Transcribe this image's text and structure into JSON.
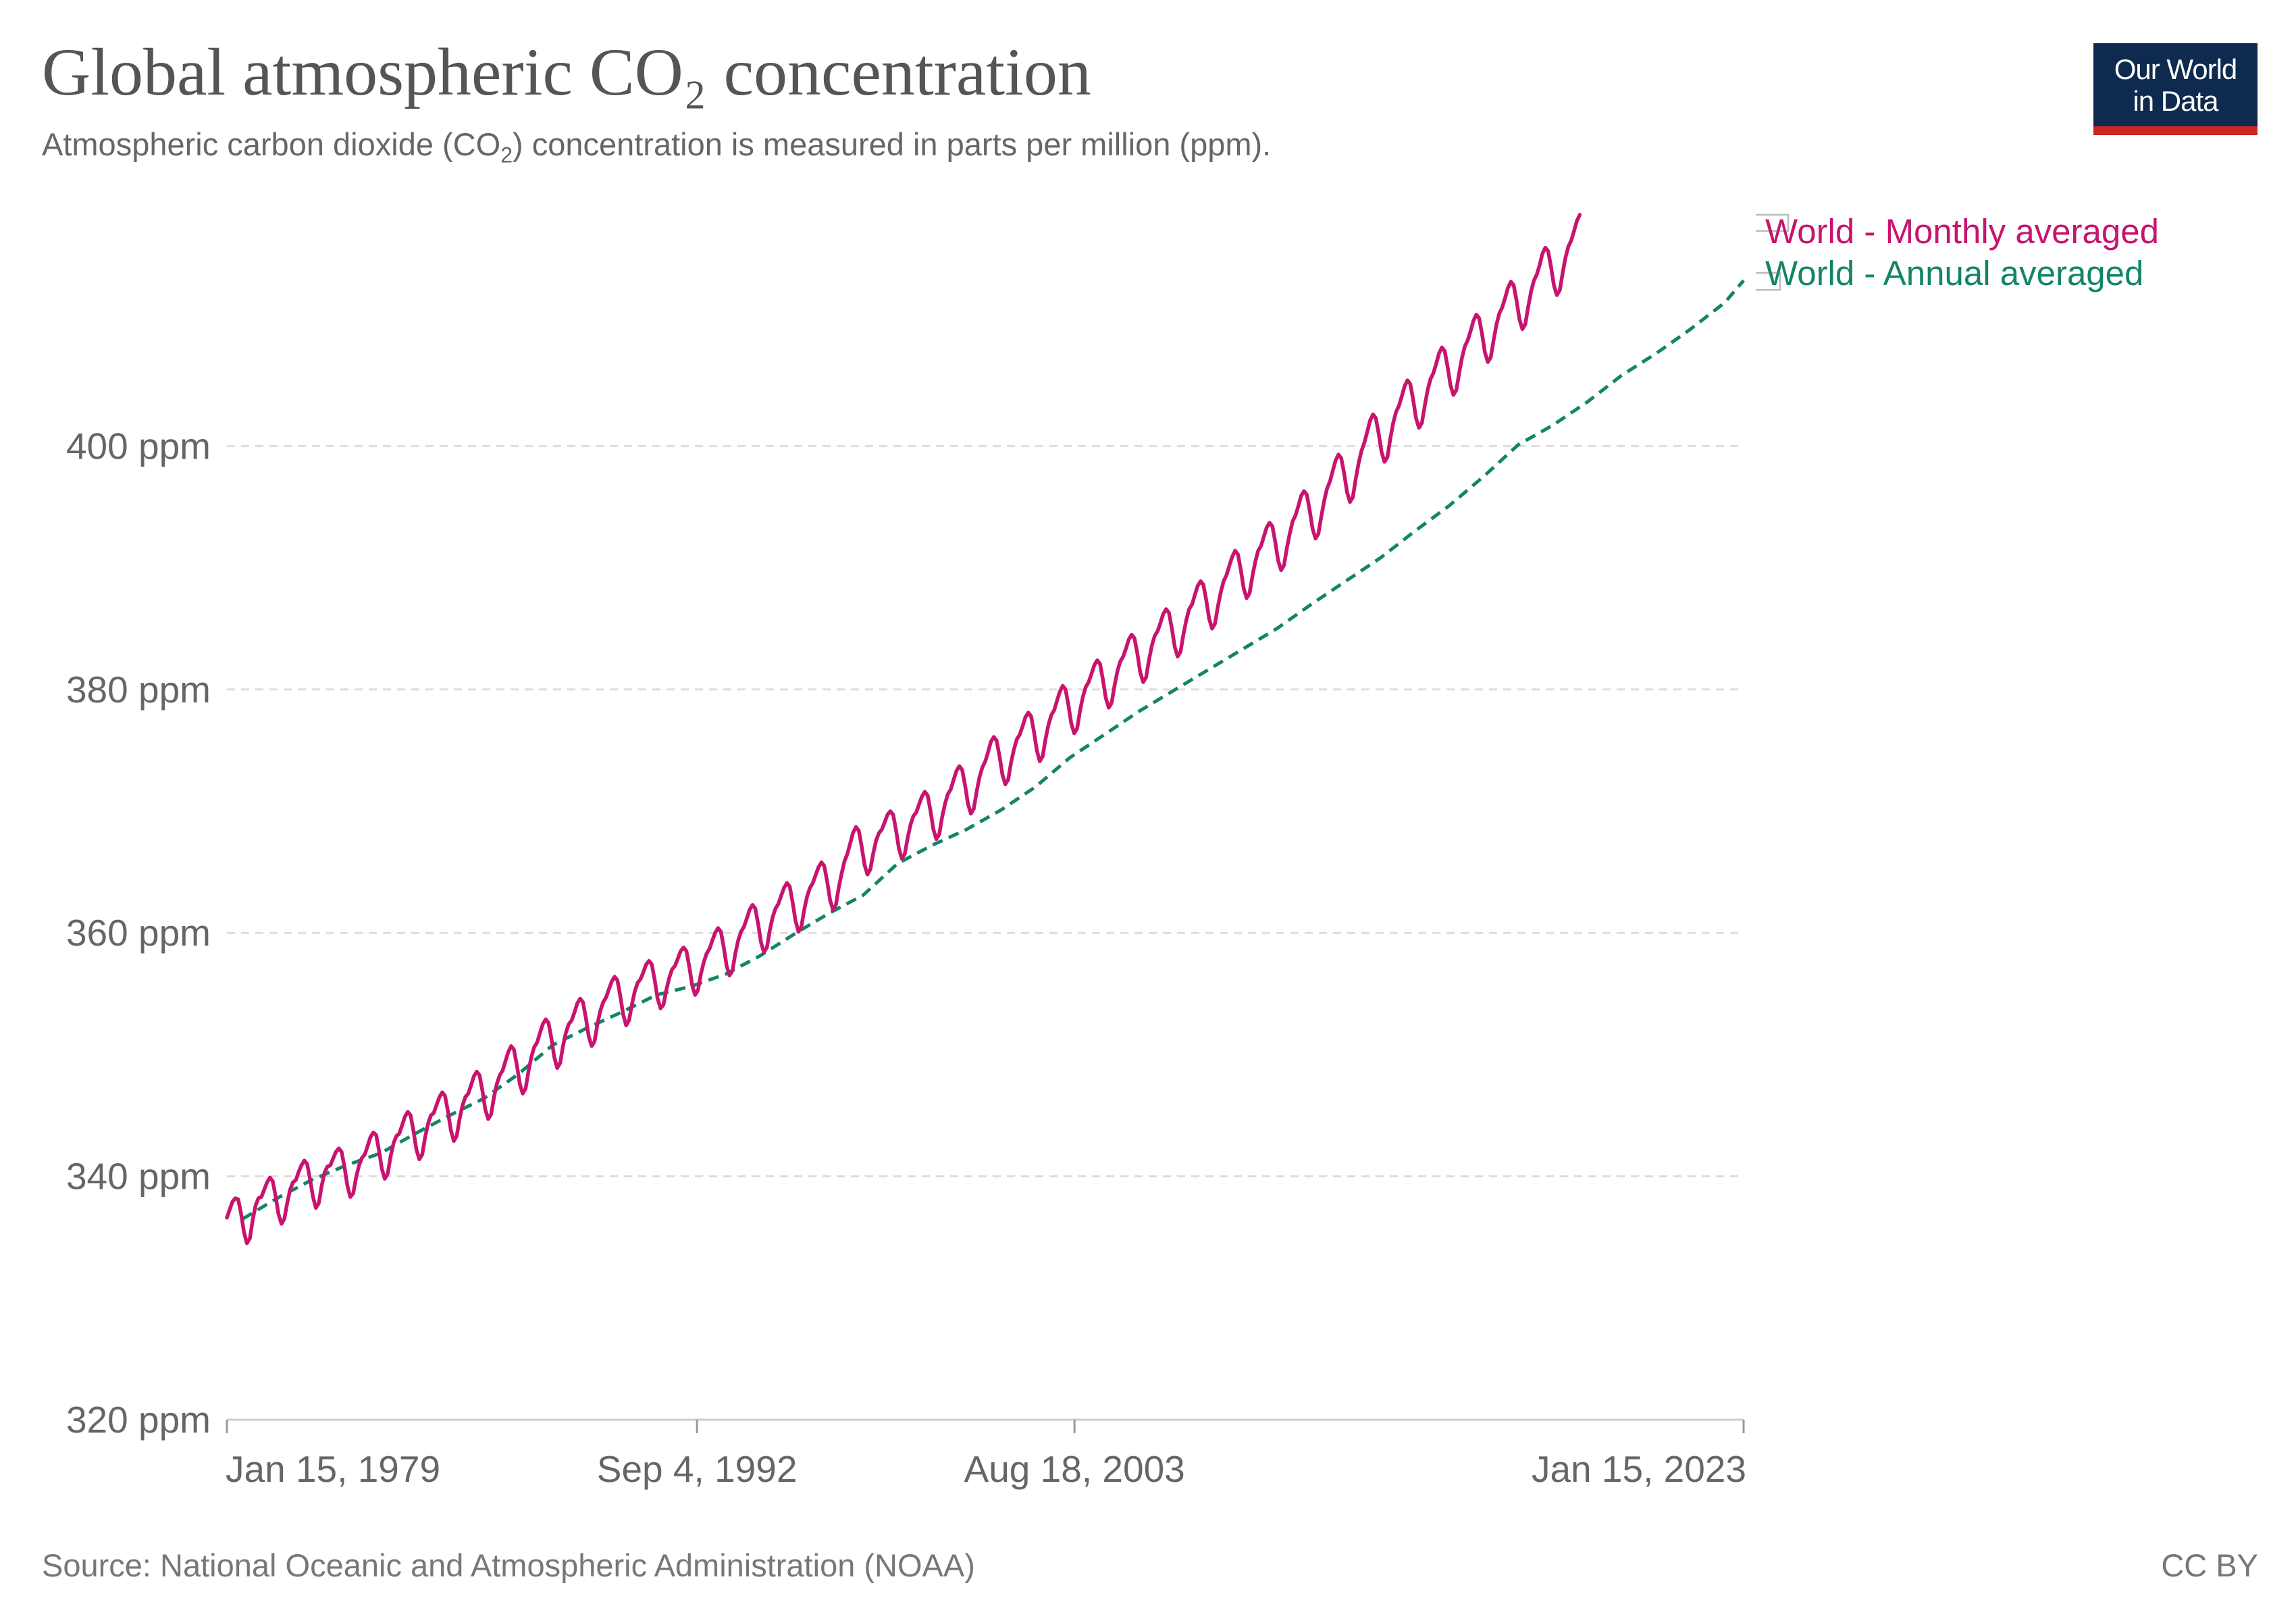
{
  "header": {
    "title": "Global atmospheric CO₂ concentration",
    "subtitle": "Atmospheric carbon dioxide (CO₂) concentration is measured in parts per million (ppm).",
    "logo_line1": "Our World",
    "logo_line2": "in Data"
  },
  "footer": {
    "source": "Source: National Oceanic and Atmospheric Administration (NOAA)",
    "license": "CC BY"
  },
  "colors": {
    "monthly": "#c8146e",
    "annual": "#138567",
    "grid": "#dddddd",
    "logo_bg": "#0f2a4f",
    "logo_accent": "#cd2424"
  },
  "chart_data": {
    "type": "line",
    "title": "Global atmospheric CO₂ concentration",
    "subtitle": "Atmospheric carbon dioxide (CO₂) concentration is measured in parts per million (ppm).",
    "xlabel": "",
    "ylabel": "",
    "xlim": [
      "1979-01-15",
      "2023-01-15"
    ],
    "ylim": [
      320,
      420
    ],
    "y_ticks": [
      320,
      340,
      360,
      380,
      400
    ],
    "y_tick_labels": [
      "320 ppm",
      "340 ppm",
      "360 ppm",
      "380 ppm",
      "400 ppm"
    ],
    "x_ticks": [
      "1979-01-15",
      "1992-09-04",
      "2003-08-18",
      "2023-01-15"
    ],
    "x_tick_labels": [
      "Jan 15, 1979",
      "Sep 4, 1992",
      "Aug 18, 2003",
      "Jan 15, 2023"
    ],
    "grid": "horizontal dashed",
    "legend_placement": "right",
    "series": [
      {
        "name": "World - Monthly averaged",
        "style": "solid",
        "frequency": "monthly",
        "start": "1979-01",
        "values": [
          336.6,
          337.3,
          337.9,
          338.2,
          338.1,
          336.9,
          335.4,
          334.5,
          334.9,
          336.4,
          337.6,
          338.2,
          338.3,
          338.9,
          339.5,
          339.9,
          339.6,
          338.3,
          336.9,
          336.1,
          336.5,
          337.8,
          338.9,
          339.5,
          339.7,
          340.4,
          340.9,
          341.3,
          341.0,
          339.7,
          338.3,
          337.4,
          337.8,
          339.2,
          340.3,
          340.8,
          340.9,
          341.5,
          342.0,
          342.3,
          342.0,
          340.7,
          339.2,
          338.3,
          338.6,
          339.9,
          340.9,
          341.5,
          341.8,
          342.5,
          343.2,
          343.6,
          343.4,
          342.1,
          340.6,
          339.8,
          340.2,
          341.6,
          342.7,
          343.3,
          343.5,
          344.2,
          344.9,
          345.3,
          345.0,
          343.7,
          342.2,
          341.4,
          341.8,
          343.2,
          344.3,
          345.0,
          345.2,
          345.9,
          346.5,
          346.9,
          346.6,
          345.3,
          343.8,
          342.9,
          343.3,
          344.7,
          345.8,
          346.5,
          346.8,
          347.5,
          348.2,
          348.6,
          348.3,
          347.0,
          345.5,
          344.7,
          345.1,
          346.5,
          347.6,
          348.3,
          348.7,
          349.5,
          350.2,
          350.7,
          350.4,
          349.1,
          347.6,
          346.8,
          347.2,
          348.6,
          349.8,
          350.6,
          351.0,
          351.8,
          352.5,
          352.9,
          352.6,
          351.3,
          349.8,
          348.9,
          349.3,
          350.7,
          351.8,
          352.5,
          352.8,
          353.5,
          354.2,
          354.6,
          354.3,
          353.0,
          351.5,
          350.7,
          351.1,
          352.5,
          353.6,
          354.3,
          354.7,
          355.4,
          356.0,
          356.4,
          356.1,
          354.8,
          353.3,
          352.4,
          352.8,
          354.1,
          355.2,
          355.9,
          356.2,
          356.8,
          357.4,
          357.7,
          357.4,
          356.1,
          354.6,
          353.8,
          354.1,
          355.3,
          356.3,
          357.0,
          357.3,
          357.9,
          358.5,
          358.8,
          358.5,
          357.2,
          355.7,
          354.9,
          355.3,
          356.6,
          357.6,
          358.3,
          358.7,
          359.4,
          360.0,
          360.4,
          360.1,
          358.8,
          357.3,
          356.5,
          356.9,
          358.3,
          359.4,
          360.1,
          360.5,
          361.2,
          361.9,
          362.3,
          362.0,
          360.7,
          359.2,
          358.4,
          358.8,
          360.2,
          361.3,
          362.0,
          362.4,
          363.1,
          363.7,
          364.1,
          363.8,
          362.5,
          361.0,
          360.1,
          360.5,
          361.9,
          363.0,
          363.7,
          364.1,
          364.8,
          365.4,
          365.8,
          365.5,
          364.2,
          362.7,
          361.9,
          362.3,
          363.7,
          364.9,
          365.9,
          366.5,
          367.4,
          368.2,
          368.7,
          368.4,
          367.1,
          365.6,
          364.8,
          365.2,
          366.5,
          367.6,
          368.2,
          368.5,
          369.1,
          369.7,
          370.0,
          369.7,
          368.4,
          366.9,
          366.1,
          366.5,
          367.8,
          368.9,
          369.6,
          369.9,
          370.6,
          371.2,
          371.6,
          371.3,
          370.0,
          368.5,
          367.7,
          368.1,
          369.5,
          370.6,
          371.4,
          371.8,
          372.6,
          373.3,
          373.7,
          373.4,
          372.1,
          370.6,
          369.8,
          370.2,
          371.6,
          372.8,
          373.6,
          374.1,
          374.9,
          375.7,
          376.1,
          375.8,
          374.5,
          373.0,
          372.2,
          372.6,
          374.0,
          375.1,
          375.9,
          376.3,
          377.0,
          377.7,
          378.1,
          377.8,
          376.5,
          375.0,
          374.1,
          374.5,
          375.9,
          377.1,
          377.9,
          378.3,
          379.1,
          379.8,
          380.3,
          380.0,
          378.7,
          377.2,
          376.4,
          376.8,
          378.2,
          379.4,
          380.2,
          380.6,
          381.3,
          382.0,
          382.4,
          382.1,
          380.8,
          379.3,
          378.5,
          378.9,
          380.3,
          381.5,
          382.3,
          382.7,
          383.4,
          384.1,
          384.5,
          384.2,
          382.9,
          381.4,
          380.6,
          381.0,
          382.4,
          383.6,
          384.4,
          384.8,
          385.5,
          386.2,
          386.6,
          386.3,
          385.0,
          383.5,
          382.7,
          383.1,
          384.5,
          385.7,
          386.6,
          387.0,
          387.8,
          388.5,
          388.9,
          388.6,
          387.3,
          385.8,
          385.0,
          385.4,
          386.8,
          388.0,
          388.9,
          389.4,
          390.2,
          390.9,
          391.4,
          391.1,
          389.8,
          388.3,
          387.5,
          387.9,
          389.3,
          390.5,
          391.4,
          391.8,
          392.6,
          393.3,
          393.7,
          393.4,
          392.1,
          390.6,
          389.8,
          390.2,
          391.6,
          392.8,
          393.8,
          394.3,
          395.1,
          395.9,
          396.3,
          396.0,
          394.7,
          393.2,
          392.4,
          392.8,
          394.2,
          395.5,
          396.5,
          397.1,
          398.0,
          398.8,
          399.3,
          399.0,
          397.7,
          396.2,
          395.4,
          395.8,
          397.3,
          398.6,
          399.6,
          400.3,
          401.2,
          402.1,
          402.6,
          402.3,
          401.0,
          399.5,
          398.7,
          399.1,
          400.6,
          401.9,
          402.8,
          403.3,
          404.1,
          404.9,
          405.4,
          405.1,
          403.8,
          402.3,
          401.5,
          401.9,
          403.3,
          404.6,
          405.5,
          406.0,
          406.8,
          407.6,
          408.1,
          407.8,
          406.5,
          405.0,
          404.2,
          404.6,
          406.0,
          407.3,
          408.2,
          408.7,
          409.5,
          410.3,
          410.8,
          410.5,
          409.2,
          407.7,
          406.9,
          407.3,
          408.7,
          410.0,
          410.9,
          411.4,
          412.2,
          413.0,
          413.5,
          413.2,
          411.9,
          410.4,
          409.6,
          410.0,
          411.4,
          412.7,
          413.6,
          414.1,
          414.9,
          415.8,
          416.3,
          416.0,
          414.7,
          413.2,
          412.4,
          412.8,
          414.2,
          415.5,
          416.4,
          416.9,
          417.7,
          418.5,
          419.0
        ]
      },
      {
        "name": "World - Annual averaged",
        "style": "dashed",
        "frequency": "annual",
        "years": [
          1979,
          1980,
          1981,
          1982,
          1983,
          1984,
          1985,
          1986,
          1987,
          1988,
          1989,
          1990,
          1991,
          1992,
          1993,
          1994,
          1995,
          1996,
          1997,
          1998,
          1999,
          2000,
          2001,
          2002,
          2003,
          2004,
          2005,
          2006,
          2007,
          2008,
          2009,
          2010,
          2011,
          2012,
          2013,
          2014,
          2015,
          2016,
          2017,
          2018,
          2019,
          2020,
          2021,
          2022,
          2023
        ],
        "values": [
          336.5,
          338.2,
          339.7,
          340.9,
          341.9,
          343.5,
          345.0,
          346.4,
          348.4,
          350.8,
          352.2,
          353.5,
          354.9,
          355.6,
          356.6,
          358.1,
          359.9,
          361.6,
          363.1,
          365.7,
          367.2,
          368.5,
          370.1,
          372.0,
          374.4,
          376.3,
          378.2,
          379.9,
          381.6,
          383.3,
          385.0,
          387.0,
          388.9,
          390.8,
          393.0,
          395.1,
          397.5,
          400.1,
          401.7,
          403.6,
          405.8,
          407.6,
          409.6,
          411.8,
          413.6
        ]
      }
    ]
  }
}
